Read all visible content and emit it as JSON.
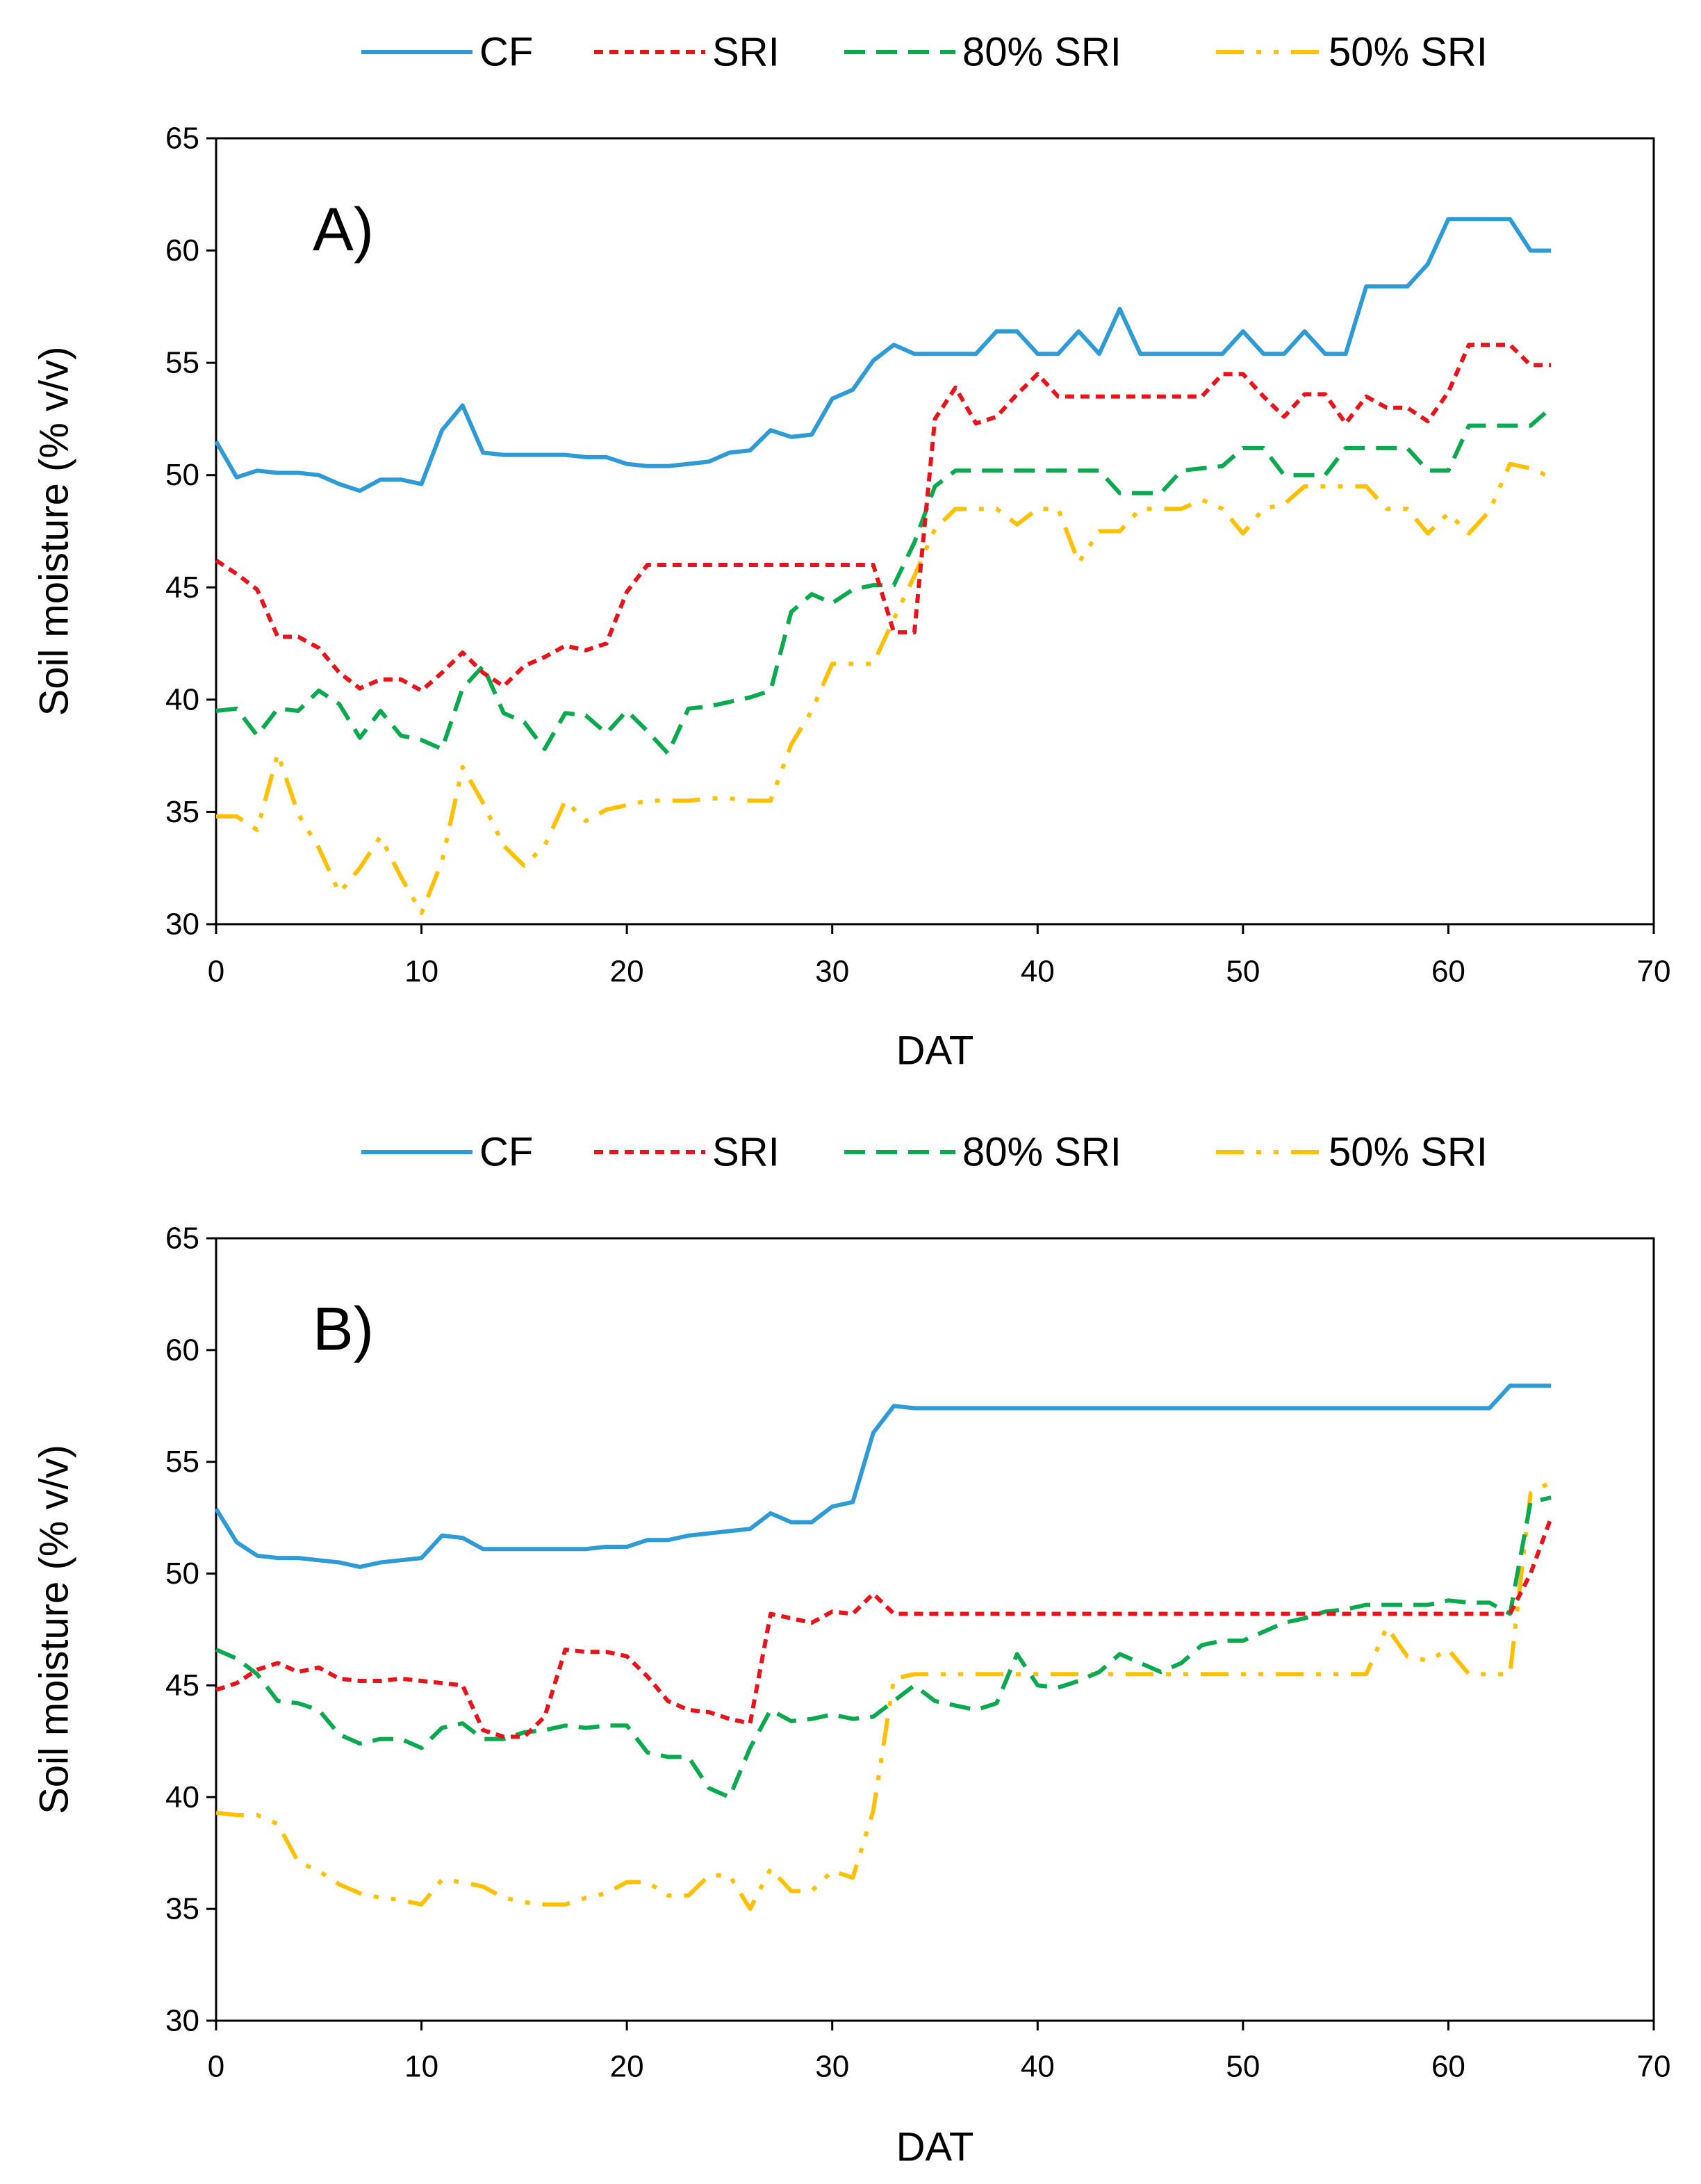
{
  "chart_data": [
    {
      "type": "line",
      "panel_label": "A)",
      "xlabel": "DAT",
      "ylabel": "Soil moisture (% v/v)",
      "xlim": [
        0,
        70
      ],
      "ylim": [
        30,
        65
      ],
      "xticks": [
        "0",
        "10",
        "20",
        "30",
        "40",
        "50",
        "60",
        "70"
      ],
      "yticks": [
        "30",
        "35",
        "40",
        "45",
        "50",
        "55",
        "60",
        "65"
      ],
      "grid": false,
      "legend": {
        "placement": "top",
        "entries": [
          "CF",
          "SRI",
          "80% SRI",
          "50% SRI"
        ]
      },
      "x": [
        0,
        1,
        2,
        3,
        4,
        5,
        6,
        7,
        8,
        9,
        10,
        11,
        12,
        13,
        14,
        15,
        16,
        17,
        18,
        19,
        20,
        21,
        22,
        23,
        24,
        25,
        26,
        27,
        28,
        29,
        30,
        31,
        32,
        33,
        34,
        35,
        36,
        37,
        38,
        39,
        40,
        41,
        42,
        43,
        44,
        45,
        46,
        47,
        48,
        49,
        50,
        51,
        52,
        53,
        54,
        55,
        56,
        57,
        58,
        59,
        60,
        61,
        62,
        63,
        64,
        65
      ],
      "series": [
        {
          "name": "CF",
          "color": "#2e9bd6",
          "dash": "solid",
          "values": [
            51.5,
            49.9,
            50.2,
            50.1,
            50.1,
            50.0,
            49.6,
            49.3,
            49.8,
            49.8,
            49.6,
            52.0,
            53.1,
            51.0,
            50.9,
            50.9,
            50.9,
            50.9,
            50.8,
            50.8,
            50.5,
            50.4,
            50.4,
            50.5,
            50.6,
            51.0,
            51.1,
            52.0,
            51.7,
            51.8,
            53.4,
            53.8,
            55.1,
            55.8,
            55.4,
            55.4,
            55.4,
            55.4,
            56.4,
            56.4,
            55.4,
            55.4,
            56.4,
            55.4,
            57.4,
            55.4,
            55.4,
            55.4,
            55.4,
            55.4,
            56.4,
            55.4,
            55.4,
            56.4,
            55.4,
            55.4,
            58.4,
            58.4,
            58.4,
            59.4,
            61.4,
            61.4,
            61.4,
            61.4,
            60.0,
            60.0
          ]
        },
        {
          "name": "SRI",
          "color": "#e8141b",
          "dash": "dashed",
          "values": [
            46.2,
            45.6,
            44.9,
            42.8,
            42.8,
            42.3,
            41.2,
            40.5,
            40.9,
            40.9,
            40.4,
            41.2,
            42.1,
            41.2,
            40.6,
            41.5,
            41.9,
            42.4,
            42.2,
            42.5,
            44.8,
            46.0,
            46.0,
            46.0,
            46.0,
            46.0,
            46.0,
            46.0,
            46.0,
            46.0,
            46.0,
            46.0,
            46.0,
            43.0,
            43.0,
            52.5,
            53.9,
            52.3,
            52.6,
            53.6,
            54.5,
            53.5,
            53.5,
            53.5,
            53.5,
            53.5,
            53.5,
            53.5,
            53.5,
            54.5,
            54.5,
            53.5,
            52.6,
            53.6,
            53.6,
            52.3,
            53.5,
            53.0,
            53.0,
            52.4,
            53.7,
            55.8,
            55.8,
            55.8,
            54.9,
            54.9
          ]
        },
        {
          "name": "80% SRI",
          "color": "#0aa84f",
          "dash": "longdash",
          "values": [
            39.5,
            39.6,
            38.4,
            39.6,
            39.5,
            40.4,
            39.8,
            38.3,
            39.5,
            38.4,
            38.2,
            37.8,
            40.5,
            41.5,
            39.4,
            39.0,
            37.8,
            39.4,
            39.3,
            38.5,
            39.5,
            38.6,
            37.6,
            39.6,
            39.7,
            39.9,
            40.1,
            40.4,
            43.9,
            44.7,
            44.3,
            44.9,
            45.1,
            45.1,
            47.0,
            49.5,
            50.2,
            50.2,
            50.2,
            50.2,
            50.2,
            50.2,
            50.2,
            50.2,
            49.2,
            49.2,
            49.2,
            50.2,
            50.3,
            50.4,
            51.2,
            51.2,
            50.0,
            50.0,
            50.0,
            51.2,
            51.2,
            51.2,
            51.2,
            50.2,
            50.2,
            52.2,
            52.2,
            52.2,
            52.2,
            53.0
          ]
        },
        {
          "name": "50% SRI",
          "color": "#ffc000",
          "dash": "dashdotdot",
          "values": [
            34.8,
            34.8,
            34.2,
            37.6,
            34.9,
            33.4,
            31.4,
            32.5,
            33.9,
            32.1,
            30.5,
            32.8,
            37.0,
            35.4,
            33.5,
            32.6,
            33.5,
            35.5,
            34.6,
            35.1,
            35.3,
            35.5,
            35.5,
            35.5,
            35.6,
            35.6,
            35.5,
            35.5,
            38.0,
            39.5,
            41.6,
            41.6,
            41.6,
            43.6,
            45.5,
            47.6,
            48.5,
            48.5,
            48.5,
            47.8,
            48.5,
            48.5,
            46.1,
            47.5,
            47.5,
            48.5,
            48.5,
            48.5,
            48.9,
            48.5,
            47.4,
            48.5,
            48.7,
            49.5,
            49.5,
            49.5,
            49.5,
            48.5,
            48.5,
            47.4,
            48.3,
            47.4,
            48.4,
            50.5,
            50.3,
            49.9
          ]
        }
      ]
    },
    {
      "type": "line",
      "panel_label": "B)",
      "xlabel": "DAT",
      "ylabel": "Soil moisture (% v/v)",
      "xlim": [
        0,
        70
      ],
      "ylim": [
        30,
        65
      ],
      "xticks": [
        "0",
        "10",
        "20",
        "30",
        "40",
        "50",
        "60",
        "70"
      ],
      "yticks": [
        "30",
        "35",
        "40",
        "45",
        "50",
        "55",
        "60",
        "65"
      ],
      "grid": false,
      "legend": {
        "placement": "top",
        "entries": [
          "CF",
          "SRI",
          "80% SRI",
          "50% SRI"
        ]
      },
      "x": [
        0,
        1,
        2,
        3,
        4,
        5,
        6,
        7,
        8,
        9,
        10,
        11,
        12,
        13,
        14,
        15,
        16,
        17,
        18,
        19,
        20,
        21,
        22,
        23,
        24,
        25,
        26,
        27,
        28,
        29,
        30,
        31,
        32,
        33,
        34,
        35,
        36,
        37,
        38,
        39,
        40,
        41,
        42,
        43,
        44,
        45,
        46,
        47,
        48,
        49,
        50,
        51,
        52,
        53,
        54,
        55,
        56,
        57,
        58,
        59,
        60,
        61,
        62,
        63,
        64,
        65
      ],
      "series": [
        {
          "name": "CF",
          "color": "#2e9bd6",
          "dash": "solid",
          "values": [
            52.9,
            51.4,
            50.8,
            50.7,
            50.7,
            50.6,
            50.5,
            50.3,
            50.5,
            50.6,
            50.7,
            51.7,
            51.6,
            51.1,
            51.1,
            51.1,
            51.1,
            51.1,
            51.1,
            51.2,
            51.2,
            51.5,
            51.5,
            51.7,
            51.8,
            51.9,
            52.0,
            52.7,
            52.3,
            52.3,
            53.0,
            53.2,
            56.3,
            57.5,
            57.4,
            57.4,
            57.4,
            57.4,
            57.4,
            57.4,
            57.4,
            57.4,
            57.4,
            57.4,
            57.4,
            57.4,
            57.4,
            57.4,
            57.4,
            57.4,
            57.4,
            57.4,
            57.4,
            57.4,
            57.4,
            57.4,
            57.4,
            57.4,
            57.4,
            57.4,
            57.4,
            57.4,
            57.4,
            58.4,
            58.4,
            58.4
          ]
        },
        {
          "name": "SRI",
          "color": "#e8141b",
          "dash": "dashed",
          "values": [
            44.8,
            45.1,
            45.7,
            46.0,
            45.6,
            45.8,
            45.3,
            45.2,
            45.2,
            45.3,
            45.2,
            45.1,
            45.0,
            43.0,
            42.7,
            42.7,
            43.6,
            46.6,
            46.5,
            46.5,
            46.3,
            45.4,
            44.3,
            43.9,
            43.8,
            43.5,
            43.3,
            48.2,
            48.0,
            47.8,
            48.3,
            48.2,
            49.1,
            48.2,
            48.2,
            48.2,
            48.2,
            48.2,
            48.2,
            48.2,
            48.2,
            48.2,
            48.2,
            48.2,
            48.2,
            48.2,
            48.2,
            48.2,
            48.2,
            48.2,
            48.2,
            48.2,
            48.2,
            48.2,
            48.2,
            48.2,
            48.2,
            48.2,
            48.2,
            48.2,
            48.2,
            48.2,
            48.2,
            48.2,
            50.0,
            52.5
          ]
        },
        {
          "name": "80% SRI",
          "color": "#0aa84f",
          "dash": "longdash",
          "values": [
            46.6,
            46.2,
            45.5,
            44.3,
            44.2,
            43.9,
            42.8,
            42.4,
            42.6,
            42.6,
            42.2,
            43.1,
            43.3,
            42.6,
            42.6,
            42.9,
            43.0,
            43.2,
            43.1,
            43.2,
            43.2,
            42.0,
            41.8,
            41.8,
            40.4,
            40.0,
            42.2,
            43.9,
            43.4,
            43.5,
            43.7,
            43.5,
            43.6,
            44.3,
            45.0,
            44.3,
            44.1,
            43.9,
            44.2,
            46.4,
            45.0,
            44.9,
            45.2,
            45.6,
            46.4,
            46.0,
            45.6,
            46.0,
            46.8,
            47.0,
            47.0,
            47.4,
            47.8,
            48.0,
            48.3,
            48.4,
            48.6,
            48.6,
            48.6,
            48.6,
            48.8,
            48.7,
            48.7,
            48.2,
            53.2,
            53.4
          ]
        },
        {
          "name": "50% SRI",
          "color": "#ffc000",
          "dash": "dashdotdot",
          "values": [
            39.3,
            39.2,
            39.2,
            38.8,
            37.1,
            36.7,
            36.1,
            35.7,
            35.5,
            35.4,
            35.2,
            36.3,
            36.2,
            36.0,
            35.5,
            35.3,
            35.2,
            35.2,
            35.5,
            35.7,
            36.2,
            36.2,
            35.6,
            35.6,
            36.5,
            36.5,
            35.0,
            36.8,
            35.8,
            35.8,
            36.7,
            36.4,
            39.4,
            45.3,
            45.5,
            45.5,
            45.5,
            45.5,
            45.5,
            45.5,
            45.5,
            45.5,
            45.5,
            45.5,
            45.5,
            45.5,
            45.5,
            45.5,
            45.5,
            45.5,
            45.5,
            45.5,
            45.5,
            45.5,
            45.5,
            45.5,
            45.5,
            47.6,
            46.3,
            46.1,
            46.6,
            45.5,
            45.5,
            45.5,
            53.6,
            54.1
          ]
        }
      ]
    }
  ]
}
